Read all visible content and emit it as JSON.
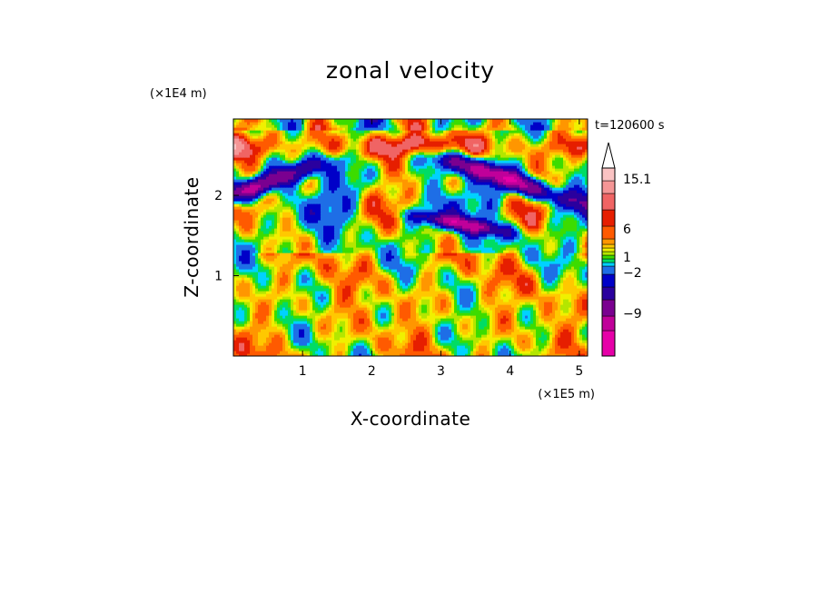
{
  "chart_data": {
    "type": "heatmap",
    "title": "zonal velocity",
    "xlabel": "X-coordinate",
    "ylabel": "Z-coordinate",
    "x_scale_label": "(×1E5 m)",
    "y_scale_label": "(×1E4 m)",
    "time_label": "t=120600 s",
    "xlim": [
      0,
      5.12
    ],
    "ylim": [
      0,
      2.95
    ],
    "x_ticks": [
      1,
      2,
      3,
      4,
      5
    ],
    "x_tick_labels": [
      "1",
      "2",
      "3",
      "4",
      "5"
    ],
    "y_ticks": [
      1,
      2
    ],
    "y_tick_labels": [
      "1",
      "2"
    ],
    "colorbar": {
      "levels_colors": [
        "#e600a8",
        "#c0009a",
        "#7a0090",
        "#2a009e",
        "#0000c8",
        "#1e6ee6",
        "#00d2ff",
        "#00dc64",
        "#3cdc00",
        "#b4e600",
        "#f0f000",
        "#ffc800",
        "#ff9600",
        "#ff5a00",
        "#e61e00",
        "#f06464",
        "#f59696",
        "#fac3c3"
      ],
      "labeled_levels": [
        "15.1",
        "6",
        "1",
        "−2",
        "−9"
      ],
      "extend_top": true
    },
    "field_notes": {
      "dominant_positive_band_z": [
        2.4,
        2.8
      ],
      "dominant_negative_band_z": [
        1.8,
        2.6
      ],
      "lower_layer_range": [
        -2,
        3
      ]
    }
  }
}
